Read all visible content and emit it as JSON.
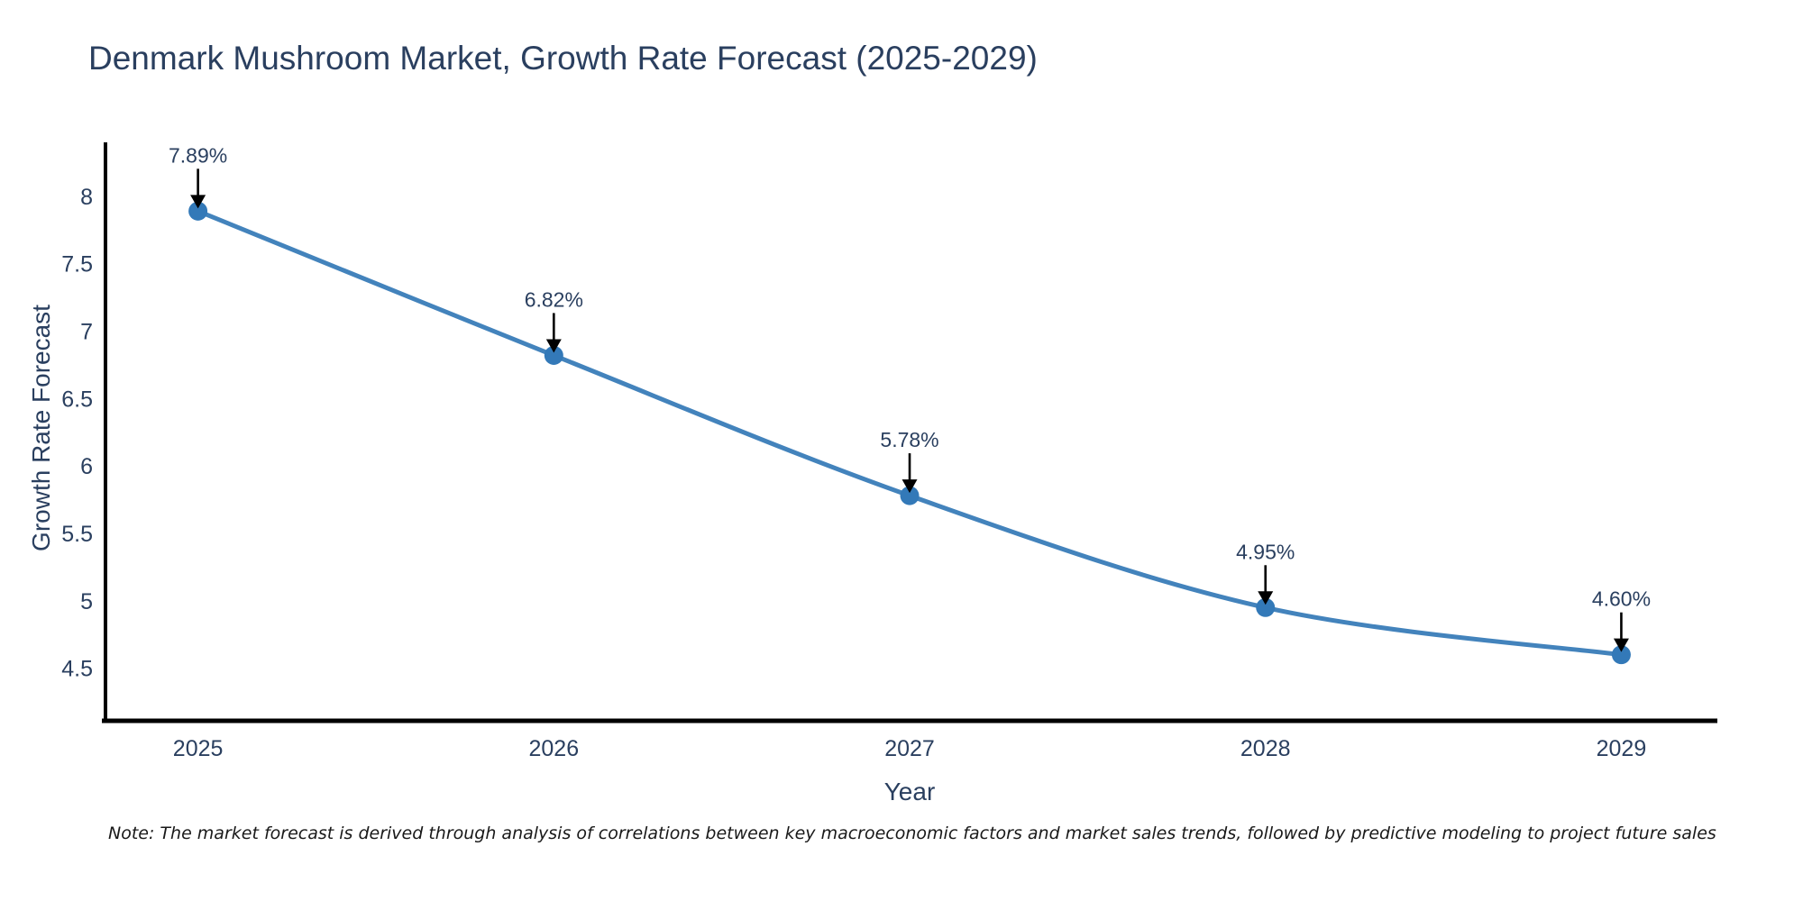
{
  "page": {
    "title": "Denmark Mushroom Market, Growth Rate Forecast (2025-2029)",
    "note": "Note: The market forecast is derived through analysis of correlations between key macroeconomic factors and market sales trends, followed by predictive modeling to project future sales"
  },
  "chart_data": {
    "type": "line",
    "title": "Denmark Mushroom Market, Growth Rate Forecast (2025-2029)",
    "xlabel": "Year",
    "ylabel": "Growth Rate Forecast",
    "x": [
      2025,
      2026,
      2027,
      2028,
      2029
    ],
    "series": [
      {
        "name": "Growth Rate Forecast",
        "values": [
          7.89,
          6.82,
          5.78,
          4.95,
          4.6
        ]
      }
    ],
    "point_labels": [
      "7.89%",
      "6.82%",
      "5.78%",
      "4.95%",
      "4.60%"
    ],
    "yticks": [
      4.5,
      5,
      5.5,
      6,
      6.5,
      7,
      7.5,
      8
    ],
    "xticks": [
      2025,
      2026,
      2027,
      2028,
      2029
    ],
    "ylim": [
      4.11,
      8.4
    ],
    "xlim": [
      2024.74,
      2029.27
    ],
    "grid": false,
    "legend": "none",
    "line_shape": "spline",
    "annotation_arrows": true,
    "colors": {
      "line": "#4383bc",
      "marker": "#3379b8",
      "axis": "#000000",
      "arrow": "#000000",
      "tick_text": "#2a3f5f",
      "title_text": "#2a3f5f",
      "note_text": "#191919",
      "background": "#ffffff"
    }
  }
}
